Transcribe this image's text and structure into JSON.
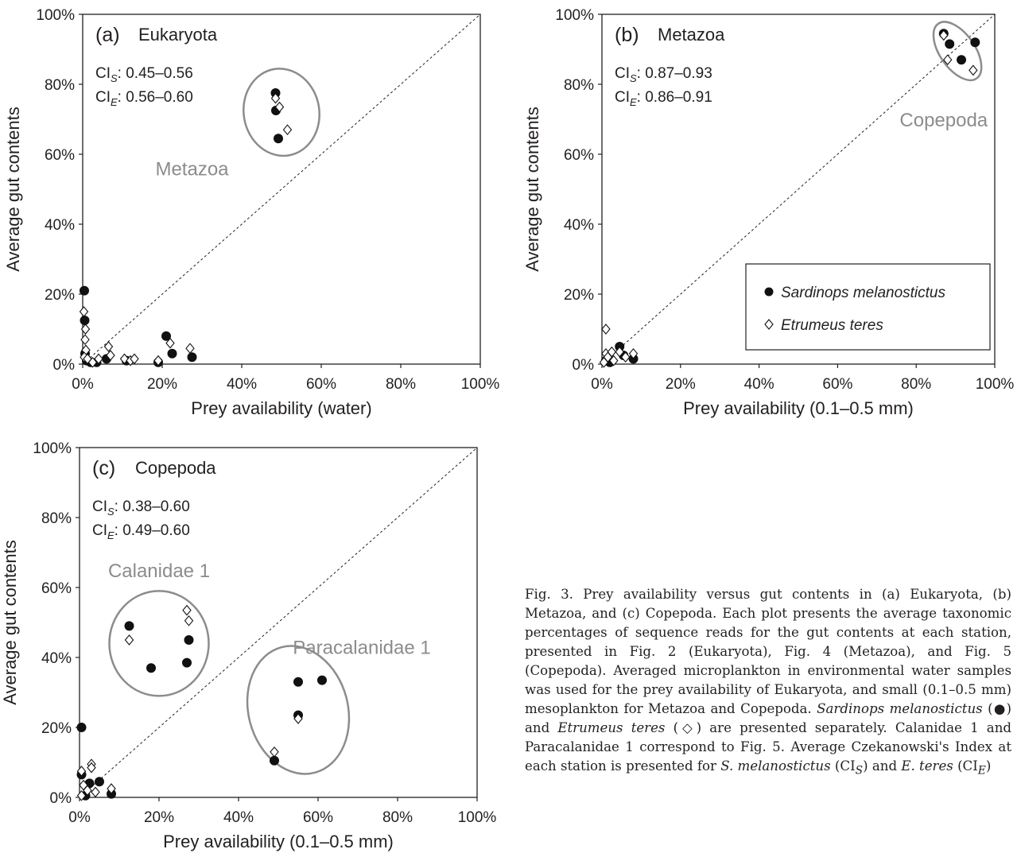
{
  "charts": [
    {
      "panel_label": "(a)",
      "title": "Eukaryota",
      "ci_s": "0.45–0.56",
      "ci_e": "0.56–0.60",
      "xlabel": "Prey availability (water)",
      "ylabel": "Average gut contents",
      "group_label": "Metazoa"
    },
    {
      "panel_label": "(b)",
      "title": "Metazoa",
      "ci_s": "0.87–0.93",
      "ci_e": "0.86–0.91",
      "xlabel": "Prey availability (0.1–0.5 mm)",
      "ylabel": "Average gut contents",
      "group_label": "Copepoda"
    },
    {
      "panel_label": "(c)",
      "title": "Copepoda",
      "ci_s": "0.38–0.60",
      "ci_e": "0.49–0.60",
      "xlabel": "Prey availability (0.1–0.5 mm)",
      "ylabel": "Average gut contents",
      "group_label_1": "Calanidae 1",
      "group_label_2": "Paracalanidae 1"
    }
  ],
  "legend": {
    "sardinops": "Sardinops melanostictus",
    "etrumeus": "Etrumeus teres"
  },
  "ticks": [
    "0%",
    "20%",
    "40%",
    "60%",
    "80%",
    "100%"
  ],
  "caption": {
    "part1": "Fig. 3. Prey availability versus gut contents in (a) Eukaryota, (b) Metazoa, and (c) Copepoda. Each plot presents the average taxonomic percentages of sequence reads for the gut contents at each station, presented in Fig. 2 (Eukaryota), Fig. 4 (Metazoa), and Fig. 5 (Copepoda). Averaged microplankton in environmental water samples was used for the prey availability of Eukaryota, and small (0.1–0.5 mm) mesoplankton for Metazoa and Copepoda.",
    "species1": "Sardinops melanostictus",
    "symbol1": "(●)",
    "and": "and",
    "species2": "Etrumeus teres",
    "symbol2": "(◇)",
    "part2": "are presented separately. Calanidae 1 and Paracalanidae 1 correspond to Fig. 5. Average Czekanowski's Index at each station is presented for",
    "abbr1": "S. melanostictus",
    "ci1": "(CI",
    "sub_s": "S",
    "and2": ") and",
    "abbr2": "E. teres",
    "ci2": "(CI",
    "sub_e": "E",
    "end": ")"
  },
  "chart_data": [
    {
      "type": "scatter",
      "title": "Eukaryota",
      "xlabel": "Prey availability (water)",
      "ylabel": "Average gut contents",
      "xlim": [
        0,
        100
      ],
      "ylim": [
        0,
        100
      ],
      "series": [
        {
          "name": "Sardinops melanostictus",
          "points": [
            [
              48.5,
              77.5
            ],
            [
              48.6,
              72.5
            ],
            [
              49.2,
              64.5
            ],
            [
              0.4,
              21
            ],
            [
              0.5,
              12.5
            ],
            [
              0.6,
              3
            ],
            [
              1,
              1
            ],
            [
              2,
              0.5
            ],
            [
              3.5,
              0.5
            ],
            [
              6,
              1.5
            ],
            [
              11,
              1
            ],
            [
              19,
              0.5
            ],
            [
              21,
              8
            ],
            [
              22.5,
              3
            ],
            [
              27.5,
              2
            ]
          ]
        },
        {
          "name": "Etrumeus teres",
          "points": [
            [
              48.5,
              76
            ],
            [
              49.5,
              73.5
            ],
            [
              51.5,
              67
            ],
            [
              0.3,
              15
            ],
            [
              0.7,
              10
            ],
            [
              0.6,
              7
            ],
            [
              0.8,
              4
            ],
            [
              0.4,
              2
            ],
            [
              1.2,
              1.5
            ],
            [
              2.5,
              0.5
            ],
            [
              4,
              1.5
            ],
            [
              6.5,
              5
            ],
            [
              7,
              2.5
            ],
            [
              10.5,
              1.5
            ],
            [
              12,
              1
            ],
            [
              13,
              1.5
            ],
            [
              19,
              1
            ],
            [
              22,
              6
            ],
            [
              27,
              4.5
            ]
          ]
        }
      ]
    },
    {
      "type": "scatter",
      "title": "Metazoa",
      "xlabel": "Prey availability (0.1–0.5 mm)",
      "ylabel": "Average gut contents",
      "xlim": [
        0,
        100
      ],
      "ylim": [
        0,
        100
      ],
      "series": [
        {
          "name": "Sardinops melanostictus",
          "points": [
            [
              87,
              94.5
            ],
            [
              88.5,
              91.5
            ],
            [
              91.5,
              87
            ],
            [
              95,
              92
            ],
            [
              4.5,
              5
            ],
            [
              5.5,
              2.5
            ],
            [
              8,
              1.5
            ],
            [
              1,
              1
            ],
            [
              2,
              0.5
            ]
          ]
        },
        {
          "name": "Etrumeus teres",
          "points": [
            [
              87,
              94
            ],
            [
              88,
              87
            ],
            [
              94.5,
              84
            ],
            [
              1,
              10
            ],
            [
              1,
              3
            ],
            [
              1.5,
              2
            ],
            [
              2.5,
              3.5
            ],
            [
              4.5,
              3.5
            ],
            [
              6,
              2
            ],
            [
              8,
              3
            ],
            [
              0.5,
              0.5
            ],
            [
              3,
              1
            ]
          ]
        }
      ]
    },
    {
      "type": "scatter",
      "title": "Copepoda",
      "xlabel": "Prey availability (0.1–0.5 mm)",
      "ylabel": "Average gut contents",
      "xlim": [
        0,
        100
      ],
      "ylim": [
        0,
        100
      ],
      "series": [
        {
          "name": "Sardinops melanostictus",
          "points": [
            [
              12.5,
              49
            ],
            [
              18,
              37
            ],
            [
              27,
              38.5
            ],
            [
              27.5,
              45
            ],
            [
              55,
              33
            ],
            [
              61,
              33.5
            ],
            [
              55,
              23.5
            ],
            [
              49,
              10.5
            ],
            [
              0.5,
              20
            ],
            [
              0.5,
              6.5
            ],
            [
              2.5,
              4
            ],
            [
              5,
              4.5
            ],
            [
              8,
              1
            ],
            [
              1.5,
              0.5
            ]
          ]
        },
        {
          "name": "Etrumeus teres",
          "points": [
            [
              12.5,
              45
            ],
            [
              27,
              53.5
            ],
            [
              27.5,
              50.5
            ],
            [
              55,
              22.5
            ],
            [
              49,
              13
            ],
            [
              0.5,
              7.5
            ],
            [
              3,
              9.5
            ],
            [
              3,
              8.5
            ],
            [
              1,
              3.5
            ],
            [
              2,
              2
            ],
            [
              4,
              1.5
            ],
            [
              8,
              2.5
            ],
            [
              0.5,
              0.5
            ]
          ]
        }
      ]
    }
  ]
}
